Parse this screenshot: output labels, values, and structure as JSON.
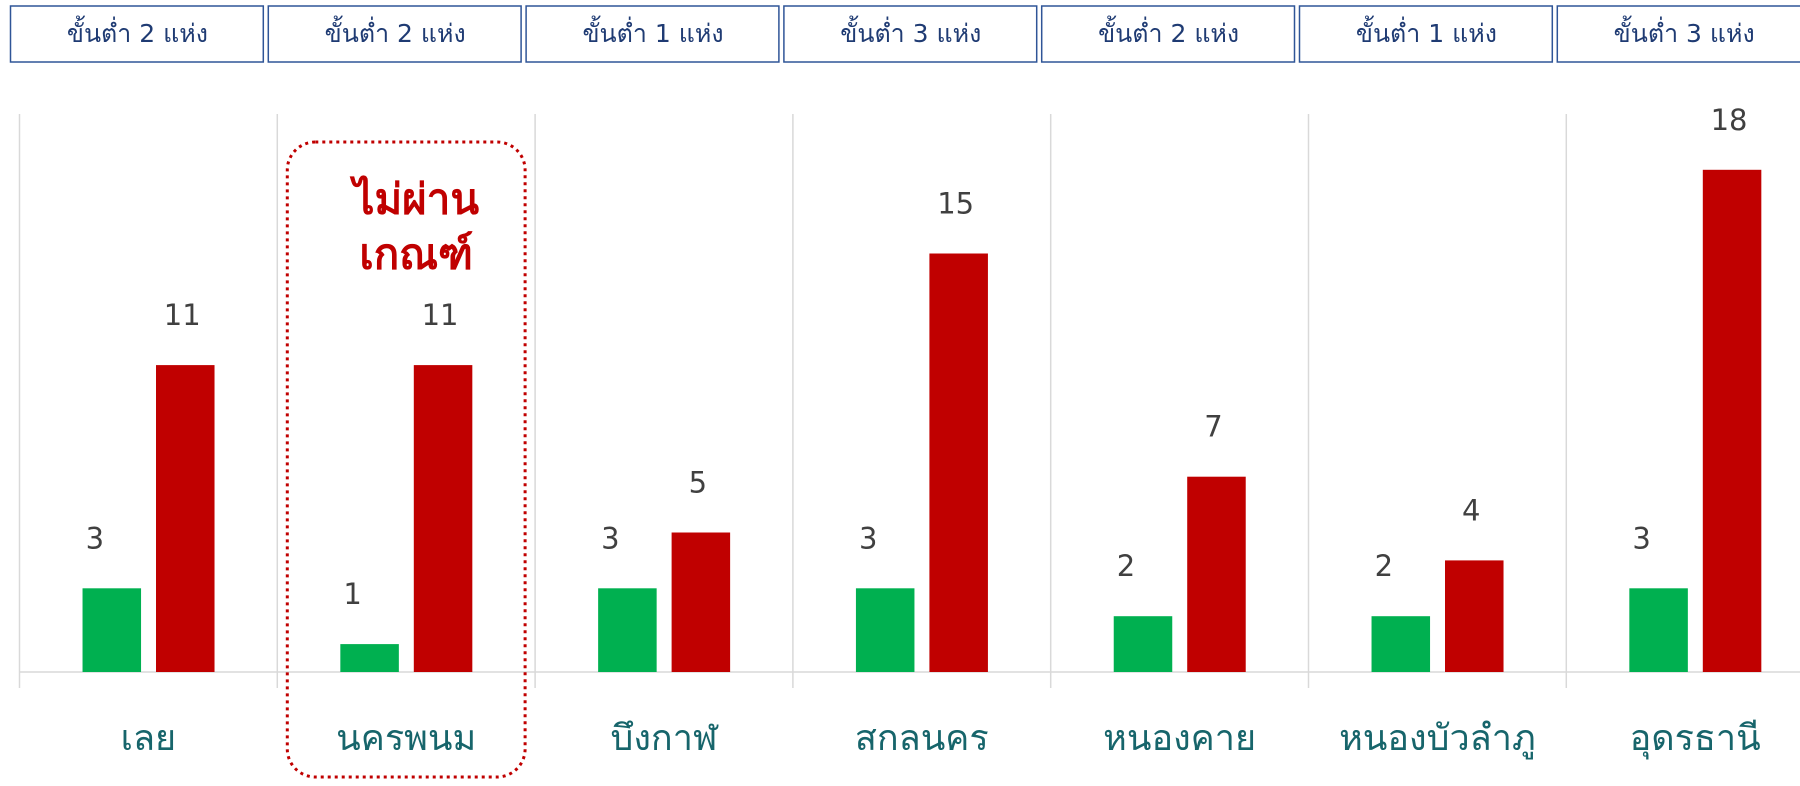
{
  "chart_data": {
    "type": "bar",
    "headers": [
      "ขั้นต่ำ 2 แห่ง",
      "ขั้นต่ำ 2 แห่ง",
      "ขั้นต่ำ 1 แห่ง",
      "ขั้นต่ำ 3 แห่ง",
      "ขั้นต่ำ 2 แห่ง",
      "ขั้นต่ำ 1 แห่ง",
      "ขั้นต่ำ 3 แห่ง"
    ],
    "annotation": [
      "ไม่ผ่าน",
      "เกณฑ์"
    ],
    "categories": [
      "เลย",
      "นครพนม",
      "บึงกาฬ",
      "สกลนคร",
      "หนองคาย",
      "หนองบัวลำภู",
      "อุดรธานี"
    ],
    "series": [
      {
        "color": "#00b050",
        "values": [
          3,
          1,
          3,
          3,
          2,
          2,
          3
        ]
      },
      {
        "color": "#c00000",
        "values": [
          11,
          11,
          5,
          15,
          7,
          4,
          18
        ]
      }
    ],
    "ylim": [
      0,
      20
    ]
  }
}
